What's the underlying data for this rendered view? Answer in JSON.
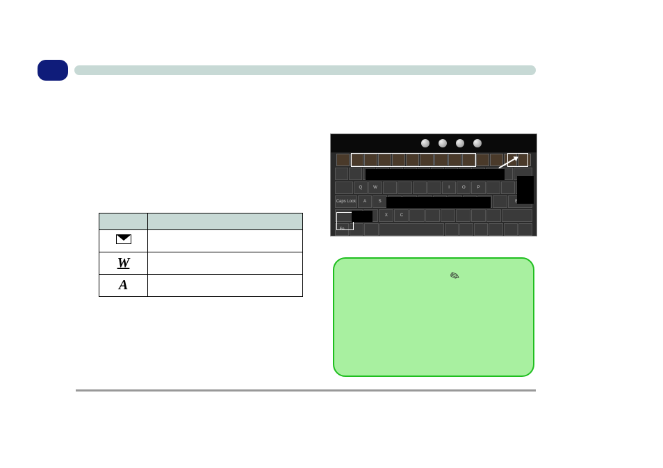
{
  "header": {
    "badge_color": "#0f1c7a",
    "bar_color": "#c7d9d5"
  },
  "table": {
    "header_bg": "#c7d9d5",
    "columns": [
      "",
      ""
    ],
    "rows": [
      {
        "icon": "mail-icon",
        "label": ""
      },
      {
        "icon": "w-icon",
        "label": ""
      },
      {
        "icon": "ap-icon",
        "label": ""
      }
    ]
  },
  "note_box": {
    "bg_color": "#a8f0a0",
    "border_color": "#1fbf1f",
    "icon_glyph": "✎"
  },
  "keyboard": {
    "highlight_color": "#ffffff",
    "button_count": 4
  },
  "footer": {
    "line_color": "#999999"
  }
}
